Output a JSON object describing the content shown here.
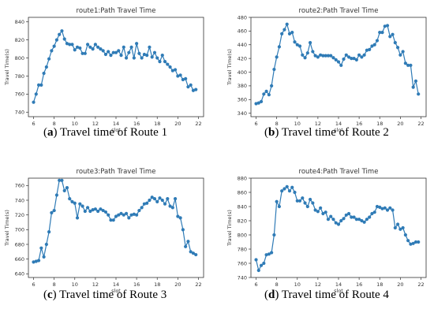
{
  "chart_data": [
    {
      "type": "line",
      "title": "route1:Path Travel Time",
      "xlabel": "slot",
      "ylabel": "Travel Time(s)",
      "caption_letter": "a",
      "caption_text": "Travel time of Route 1",
      "xlim": [
        5.5,
        22.5
      ],
      "ylim": [
        735,
        845
      ],
      "xticks": [
        6,
        8,
        10,
        12,
        14,
        16,
        18,
        20,
        22
      ],
      "yticks": [
        740,
        760,
        780,
        800,
        820,
        840
      ],
      "grid": false,
      "color": "#2f7bb6",
      "series": [
        {
          "x": [
            6.0,
            6.25,
            6.5,
            6.75,
            7.0,
            7.25,
            7.5,
            7.75,
            8.0,
            8.25,
            8.5,
            8.75,
            9.0,
            9.25,
            9.5,
            9.75,
            10.0,
            10.25,
            10.5,
            10.75,
            11.0,
            11.25,
            11.5,
            11.75,
            12.0,
            12.25,
            12.5,
            12.75,
            13.0,
            13.25,
            13.5,
            13.75,
            14.0,
            14.25,
            14.5,
            14.75,
            15.0,
            15.25,
            15.5,
            15.75,
            16.0,
            16.25,
            16.5,
            16.75,
            17.0,
            17.25,
            17.5,
            17.75,
            18.0,
            18.25,
            18.5,
            18.75,
            19.0,
            19.25,
            19.5,
            19.75,
            20.0,
            20.25,
            20.5,
            20.75,
            21.0,
            21.25,
            21.5,
            21.75
          ],
          "y": [
            751,
            760,
            770,
            770,
            783,
            790,
            799,
            808,
            813,
            820,
            826,
            830,
            821,
            816,
            815,
            815,
            809,
            812,
            811,
            805,
            805,
            815,
            812,
            810,
            815,
            812,
            810,
            808,
            804,
            807,
            803,
            806,
            806,
            808,
            803,
            812,
            800,
            806,
            812,
            800,
            816,
            805,
            800,
            804,
            803,
            812,
            801,
            806,
            800,
            796,
            803,
            796,
            793,
            790,
            786,
            787,
            780,
            781,
            776,
            777,
            768,
            770,
            764,
            765
          ]
        }
      ]
    },
    {
      "type": "line",
      "title": "route2:Path Travel Time",
      "xlabel": "slot",
      "ylabel": "Travel Time(s)",
      "caption_letter": "b",
      "caption_text": "Travel time of Route 2",
      "xlim": [
        5.5,
        22.5
      ],
      "ylim": [
        335,
        480
      ],
      "xticks": [
        6,
        8,
        10,
        12,
        14,
        16,
        18,
        20,
        22
      ],
      "yticks": [
        340,
        360,
        380,
        400,
        420,
        440,
        460,
        480
      ],
      "grid": false,
      "color": "#2f7bb6",
      "series": [
        {
          "x": [
            6.0,
            6.25,
            6.5,
            6.75,
            7.0,
            7.25,
            7.5,
            7.75,
            8.0,
            8.25,
            8.5,
            8.75,
            9.0,
            9.25,
            9.5,
            9.75,
            10.0,
            10.25,
            10.5,
            10.75,
            11.0,
            11.25,
            11.5,
            11.75,
            12.0,
            12.25,
            12.5,
            12.75,
            13.0,
            13.25,
            13.5,
            13.75,
            14.0,
            14.25,
            14.5,
            14.75,
            15.0,
            15.25,
            15.5,
            15.75,
            16.0,
            16.25,
            16.5,
            16.75,
            17.0,
            17.25,
            17.5,
            17.75,
            18.0,
            18.25,
            18.5,
            18.75,
            19.0,
            19.25,
            19.5,
            19.75,
            20.0,
            20.25,
            20.5,
            20.75,
            21.0,
            21.25,
            21.5,
            21.75
          ],
          "y": [
            354,
            355,
            357,
            368,
            372,
            367,
            380,
            404,
            422,
            437,
            456,
            462,
            470,
            456,
            458,
            444,
            440,
            438,
            425,
            421,
            428,
            443,
            430,
            424,
            422,
            425,
            424,
            424,
            424,
            424,
            421,
            418,
            415,
            410,
            419,
            425,
            422,
            420,
            420,
            418,
            425,
            422,
            425,
            432,
            433,
            438,
            440,
            446,
            458,
            458,
            467,
            468,
            452,
            455,
            443,
            436,
            425,
            430,
            413,
            410,
            410,
            378,
            387,
            368
          ]
        }
      ]
    },
    {
      "type": "line",
      "title": "route3:Path Travel Time",
      "xlabel": "slot",
      "ylabel": "Travel Time(s)",
      "caption_letter": "c",
      "caption_text": "Travel time of Route 3",
      "xlim": [
        5.5,
        22.5
      ],
      "ylim": [
        635,
        770
      ],
      "xticks": [
        6,
        8,
        10,
        12,
        14,
        16,
        18,
        20,
        22
      ],
      "yticks": [
        640,
        660,
        680,
        700,
        720,
        740,
        760
      ],
      "grid": false,
      "color": "#2f7bb6",
      "series": [
        {
          "x": [
            6.0,
            6.25,
            6.5,
            6.75,
            7.0,
            7.25,
            7.5,
            7.75,
            8.0,
            8.25,
            8.5,
            8.75,
            9.0,
            9.25,
            9.5,
            9.75,
            10.0,
            10.25,
            10.5,
            10.75,
            11.0,
            11.25,
            11.5,
            11.75,
            12.0,
            12.25,
            12.5,
            12.75,
            13.0,
            13.25,
            13.5,
            13.75,
            14.0,
            14.25,
            14.5,
            14.75,
            15.0,
            15.25,
            15.5,
            15.75,
            16.0,
            16.25,
            16.5,
            16.75,
            17.0,
            17.25,
            17.5,
            17.75,
            18.0,
            18.25,
            18.5,
            18.75,
            19.0,
            19.25,
            19.5,
            19.75,
            20.0,
            20.25,
            20.5,
            20.75,
            21.0,
            21.25,
            21.5,
            21.75
          ],
          "y": [
            656,
            657,
            658,
            675,
            663,
            680,
            697,
            723,
            726,
            747,
            767,
            767,
            753,
            757,
            742,
            738,
            736,
            716,
            735,
            732,
            725,
            730,
            725,
            727,
            728,
            725,
            728,
            726,
            724,
            720,
            713,
            713,
            718,
            720,
            722,
            720,
            722,
            716,
            720,
            721,
            720,
            726,
            730,
            735,
            736,
            740,
            744,
            742,
            738,
            743,
            740,
            735,
            742,
            732,
            730,
            742,
            718,
            716,
            700,
            677,
            684,
            670,
            668,
            666
          ]
        }
      ]
    },
    {
      "type": "line",
      "title": "route4:Path Travel Time",
      "xlabel": "slot",
      "ylabel": "Travel Time(s)",
      "caption_letter": "d",
      "caption_text": "Travel time of Route 4",
      "xlim": [
        5.5,
        22.5
      ],
      "ylim": [
        740,
        880
      ],
      "xticks": [
        6,
        8,
        10,
        12,
        14,
        16,
        18,
        20,
        22
      ],
      "yticks": [
        740,
        760,
        780,
        800,
        820,
        840,
        860,
        880
      ],
      "grid": false,
      "color": "#2f7bb6",
      "series": [
        {
          "x": [
            6.0,
            6.25,
            6.5,
            6.75,
            7.0,
            7.25,
            7.5,
            7.75,
            8.0,
            8.25,
            8.5,
            8.75,
            9.0,
            9.25,
            9.5,
            9.75,
            10.0,
            10.25,
            10.5,
            10.75,
            11.0,
            11.25,
            11.5,
            11.75,
            12.0,
            12.25,
            12.5,
            12.75,
            13.0,
            13.25,
            13.5,
            13.75,
            14.0,
            14.25,
            14.5,
            14.75,
            15.0,
            15.25,
            15.5,
            15.75,
            16.0,
            16.25,
            16.5,
            16.75,
            17.0,
            17.25,
            17.5,
            17.75,
            18.0,
            18.25,
            18.5,
            18.75,
            19.0,
            19.25,
            19.5,
            19.75,
            20.0,
            20.25,
            20.5,
            20.75,
            21.0,
            21.25,
            21.5,
            21.75
          ],
          "y": [
            765,
            750,
            757,
            760,
            772,
            773,
            775,
            800,
            847,
            840,
            862,
            865,
            868,
            862,
            867,
            860,
            848,
            848,
            852,
            845,
            840,
            850,
            845,
            835,
            833,
            838,
            830,
            832,
            822,
            826,
            822,
            817,
            815,
            820,
            823,
            828,
            830,
            825,
            825,
            822,
            822,
            820,
            818,
            822,
            825,
            830,
            832,
            840,
            839,
            837,
            838,
            835,
            838,
            835,
            810,
            815,
            808,
            810,
            800,
            792,
            787,
            788,
            790,
            790
          ]
        }
      ]
    }
  ]
}
